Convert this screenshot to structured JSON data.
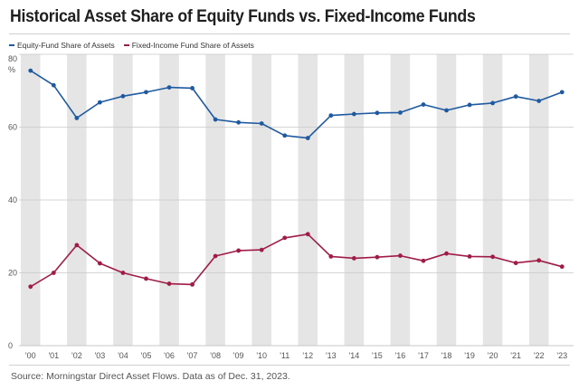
{
  "title": "Historical Asset Share of Equity Funds vs. Fixed-Income Funds",
  "source": "Source: Morningstar Direct Asset Flows. Data as of Dec. 31, 2023.",
  "colors": {
    "equity": "#1f5aa0",
    "fixed_income": "#a01c46",
    "band": "#e5e5e5",
    "text": "#555555"
  },
  "chart_data": {
    "type": "line",
    "title": "Historical Asset Share of Equity Funds vs. Fixed-Income Funds",
    "xlabel": "",
    "ylabel": "%",
    "ylim": [
      0,
      80
    ],
    "yticks": [
      "80",
      "60",
      "40",
      "20",
      "0"
    ],
    "ytick_values": [
      80,
      60,
      40,
      20,
      0
    ],
    "unit_label": "%",
    "categories": [
      "'00",
      "'01",
      "'02",
      "'03",
      "'04",
      "'05",
      "'06",
      "'07",
      "'08",
      "'09",
      "'10",
      "'11",
      "'12",
      "'13",
      "'14",
      "'15",
      "'16",
      "'17",
      "'18",
      "'19",
      "'20",
      "'21",
      "'22",
      "'23"
    ],
    "series": [
      {
        "name": "Equity-Fund Share of Assets",
        "color": "#1f5aa0",
        "values": [
          75.5,
          71.5,
          62.5,
          66.8,
          68.5,
          69.6,
          70.9,
          70.7,
          62.1,
          61.3,
          61.0,
          57.7,
          57.0,
          63.2,
          63.6,
          63.9,
          64.0,
          66.2,
          64.6,
          66.1,
          66.6,
          68.4,
          67.2,
          69.6
        ]
      },
      {
        "name": "Fixed-Income Fund Share of Assets",
        "color": "#a01c46",
        "values": [
          16.2,
          20.0,
          27.6,
          22.6,
          20.0,
          18.4,
          17.0,
          16.8,
          24.6,
          26.1,
          26.3,
          29.6,
          30.6,
          24.5,
          24.0,
          24.3,
          24.7,
          23.3,
          25.3,
          24.5,
          24.4,
          22.7,
          23.4,
          21.7
        ]
      }
    ],
    "legend_position": "top-left",
    "grid": "alternating vertical bands"
  }
}
